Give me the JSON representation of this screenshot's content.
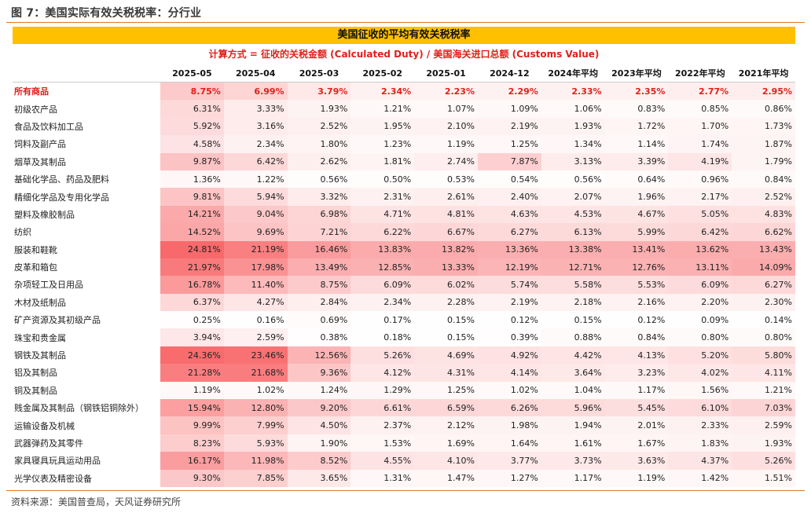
{
  "figure_title": "图 7：美国实际有效关税税率：分行业",
  "banner_title": "美国征收的平均有效关税税率",
  "formula": "计算方式 = 征收的关税金额 (Calculated Duty) /  美国海关进口总额 (Customs Value)",
  "source": "资料来源：美国普查局，天风证券研究所",
  "colors": {
    "accent_line": "#e0781e",
    "banner_bg": "#ffc000",
    "highlight_text": "#e0201a",
    "heat_base": "#f8696b"
  },
  "chart_data": {
    "type": "table",
    "columns": [
      "2025-05",
      "2025-04",
      "2025-03",
      "2025-02",
      "2025-01",
      "2024-12",
      "2024年平均",
      "2023年平均",
      "2022年平均",
      "2021年平均"
    ],
    "rows": [
      {
        "label": "所有商品",
        "values": [
          "8.75%",
          "6.99%",
          "3.79%",
          "2.34%",
          "2.23%",
          "2.29%",
          "2.33%",
          "2.35%",
          "2.77%",
          "2.95%"
        ],
        "highlight": true
      },
      {
        "label": "初级农产品",
        "values": [
          "6.31%",
          "3.33%",
          "1.93%",
          "1.21%",
          "1.07%",
          "1.09%",
          "1.06%",
          "0.83%",
          "0.85%",
          "0.86%"
        ]
      },
      {
        "label": "食品及饮料加工品",
        "values": [
          "5.92%",
          "3.16%",
          "2.52%",
          "1.95%",
          "2.10%",
          "2.19%",
          "1.93%",
          "1.72%",
          "1.70%",
          "1.73%"
        ]
      },
      {
        "label": "饲料及副产品",
        "values": [
          "4.58%",
          "2.34%",
          "1.80%",
          "1.23%",
          "1.19%",
          "1.25%",
          "1.34%",
          "1.14%",
          "1.74%",
          "1.87%"
        ]
      },
      {
        "label": "烟草及其制品",
        "values": [
          "9.87%",
          "6.42%",
          "2.62%",
          "1.81%",
          "2.74%",
          "7.87%",
          "3.13%",
          "3.39%",
          "4.19%",
          "1.79%"
        ]
      },
      {
        "label": "基础化学品、药品及肥料",
        "values": [
          "1.36%",
          "1.22%",
          "0.56%",
          "0.50%",
          "0.53%",
          "0.54%",
          "0.56%",
          "0.64%",
          "0.96%",
          "0.84%"
        ]
      },
      {
        "label": "精细化学品及专用化学品",
        "values": [
          "9.81%",
          "5.94%",
          "3.32%",
          "2.31%",
          "2.61%",
          "2.40%",
          "2.07%",
          "1.96%",
          "2.17%",
          "2.52%"
        ]
      },
      {
        "label": "塑料及橡胶制品",
        "values": [
          "14.21%",
          "9.04%",
          "6.98%",
          "4.71%",
          "4.81%",
          "4.63%",
          "4.53%",
          "4.67%",
          "5.05%",
          "4.83%"
        ]
      },
      {
        "label": "纺织",
        "values": [
          "14.52%",
          "9.69%",
          "7.21%",
          "6.22%",
          "6.67%",
          "6.27%",
          "6.13%",
          "5.99%",
          "6.42%",
          "6.62%"
        ]
      },
      {
        "label": "服装和鞋靴",
        "values": [
          "24.81%",
          "21.19%",
          "16.46%",
          "13.83%",
          "13.82%",
          "13.36%",
          "13.38%",
          "13.41%",
          "13.62%",
          "13.43%"
        ]
      },
      {
        "label": "皮革和箱包",
        "values": [
          "21.97%",
          "17.98%",
          "13.49%",
          "12.85%",
          "13.33%",
          "12.19%",
          "12.71%",
          "12.76%",
          "13.11%",
          "14.09%"
        ]
      },
      {
        "label": "杂项轻工及日用品",
        "values": [
          "16.78%",
          "11.40%",
          "8.75%",
          "6.09%",
          "6.02%",
          "5.74%",
          "5.58%",
          "5.53%",
          "6.09%",
          "6.27%"
        ]
      },
      {
        "label": "木材及纸制品",
        "values": [
          "6.37%",
          "4.27%",
          "2.84%",
          "2.34%",
          "2.28%",
          "2.19%",
          "2.18%",
          "2.16%",
          "2.20%",
          "2.30%"
        ]
      },
      {
        "label": "矿产资源及其初级产品",
        "values": [
          "0.25%",
          "0.16%",
          "0.69%",
          "0.17%",
          "0.15%",
          "0.12%",
          "0.15%",
          "0.12%",
          "0.09%",
          "0.14%"
        ]
      },
      {
        "label": "珠宝和贵金属",
        "values": [
          "3.94%",
          "2.59%",
          "0.38%",
          "0.18%",
          "0.15%",
          "0.39%",
          "0.88%",
          "0.84%",
          "0.80%",
          "0.80%"
        ]
      },
      {
        "label": "钢铁及其制品",
        "values": [
          "24.36%",
          "23.46%",
          "12.56%",
          "5.26%",
          "4.69%",
          "4.92%",
          "4.42%",
          "4.13%",
          "5.20%",
          "5.80%"
        ]
      },
      {
        "label": "铝及其制品",
        "values": [
          "21.28%",
          "21.68%",
          "9.36%",
          "4.12%",
          "4.31%",
          "4.14%",
          "3.64%",
          "3.23%",
          "4.02%",
          "4.11%"
        ]
      },
      {
        "label": "铜及其制品",
        "values": [
          "1.19%",
          "1.02%",
          "1.24%",
          "1.29%",
          "1.25%",
          "1.02%",
          "1.04%",
          "1.17%",
          "1.56%",
          "1.21%"
        ]
      },
      {
        "label": "贱金属及其制品（钢铁铝铜除外）",
        "values": [
          "15.94%",
          "12.80%",
          "9.20%",
          "6.61%",
          "6.59%",
          "6.26%",
          "5.96%",
          "5.45%",
          "6.10%",
          "7.03%"
        ]
      },
      {
        "label": "运输设备及机械",
        "values": [
          "9.99%",
          "7.99%",
          "4.50%",
          "2.37%",
          "2.12%",
          "1.98%",
          "1.94%",
          "2.01%",
          "2.33%",
          "2.59%"
        ]
      },
      {
        "label": "武器弹药及其零件",
        "values": [
          "8.23%",
          "5.93%",
          "1.90%",
          "1.53%",
          "1.69%",
          "1.64%",
          "1.61%",
          "1.67%",
          "1.83%",
          "1.93%"
        ]
      },
      {
        "label": "家具寝具玩具运动用品",
        "values": [
          "16.17%",
          "11.98%",
          "8.52%",
          "4.55%",
          "4.10%",
          "3.77%",
          "3.73%",
          "3.63%",
          "4.37%",
          "5.26%"
        ]
      },
      {
        "label": "光学仪表及精密设备",
        "values": [
          "9.30%",
          "7.85%",
          "3.65%",
          "1.31%",
          "1.47%",
          "1.27%",
          "1.17%",
          "1.19%",
          "1.42%",
          "1.51%"
        ]
      }
    ]
  }
}
